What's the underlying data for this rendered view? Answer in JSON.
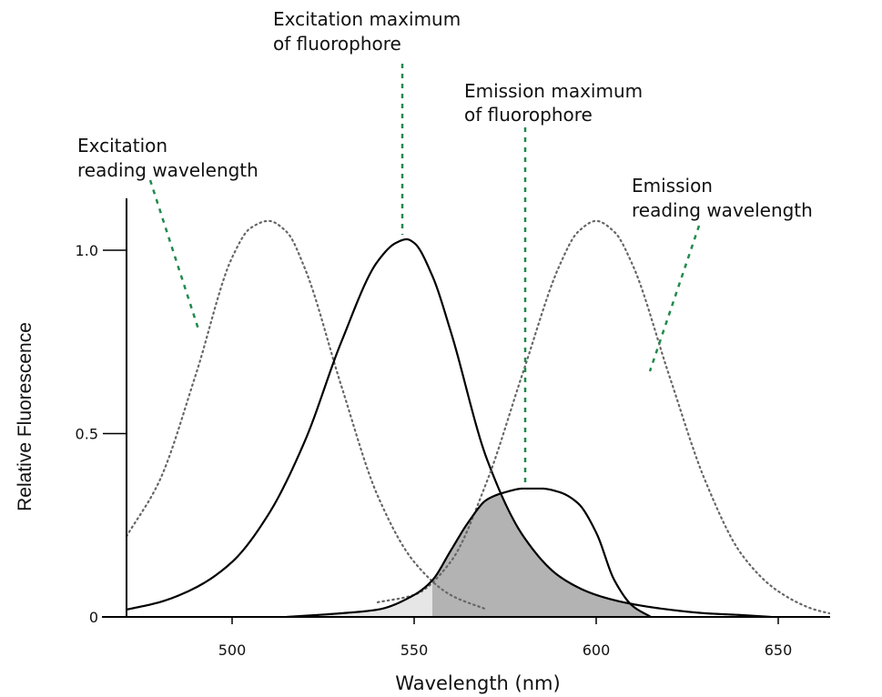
{
  "chart_data": {
    "type": "line",
    "xlabel": "Wavelength (nm)",
    "ylabel": "Relative Fluorescence",
    "xlim": [
      471,
      664
    ],
    "ylim": [
      0,
      1.1
    ],
    "x_ticks": [
      500,
      550,
      600,
      650
    ],
    "x_tick_labels": [
      "500",
      "550",
      "600",
      "650"
    ],
    "y_ticks": [
      0,
      0.5,
      1.0
    ],
    "y_tick_labels": [
      "0",
      "0.5",
      "1.0"
    ],
    "grid": false,
    "legend": "none",
    "series": [
      {
        "style": "dotted",
        "color": "#666666",
        "x": [
          471,
          480,
          490,
          500,
          505,
          510,
          515,
          520,
          530,
          540,
          550,
          560,
          570
        ],
        "y": [
          0.22,
          0.37,
          0.66,
          0.98,
          1.06,
          1.08,
          1.05,
          0.95,
          0.63,
          0.33,
          0.15,
          0.06,
          0.02
        ]
      },
      {
        "style": "solid",
        "color": "#000000",
        "x": [
          471,
          480,
          490,
          500,
          510,
          520,
          530,
          540,
          545,
          548,
          550,
          555,
          560,
          570,
          580,
          590,
          600,
          610,
          620,
          630,
          640,
          648
        ],
        "y": [
          0.02,
          0.04,
          0.08,
          0.15,
          0.28,
          0.48,
          0.75,
          0.97,
          1.02,
          1.03,
          1.02,
          0.93,
          0.78,
          0.43,
          0.22,
          0.11,
          0.06,
          0.035,
          0.02,
          0.01,
          0.005,
          0.0
        ]
      },
      {
        "style": "dotted",
        "color": "#666666",
        "x": [
          540,
          550,
          560,
          570,
          580,
          590,
          595,
          600,
          605,
          610,
          620,
          630,
          640,
          650,
          660,
          664
        ],
        "y": [
          0.04,
          0.06,
          0.15,
          0.37,
          0.67,
          0.96,
          1.05,
          1.08,
          1.05,
          0.96,
          0.66,
          0.37,
          0.17,
          0.07,
          0.02,
          0.01
        ]
      },
      {
        "style": "solid",
        "color": "#000000",
        "x": [
          515,
          530,
          540,
          550,
          555,
          560,
          565,
          570,
          575,
          580,
          585,
          590,
          595,
          600,
          605,
          610,
          615
        ],
        "y": [
          0.0,
          0.01,
          0.02,
          0.06,
          0.1,
          0.18,
          0.26,
          0.32,
          0.34,
          0.35,
          0.35,
          0.34,
          0.31,
          0.23,
          0.1,
          0.03,
          0.0
        ]
      }
    ],
    "annotations": [
      {
        "label_lines": [
          "Excitation maximum",
          "of fluorophore"
        ]
      },
      {
        "label_lines": [
          "Emission maximum",
          "of fluorophore"
        ]
      },
      {
        "label_lines": [
          "Excitation",
          "reading wavelength"
        ]
      },
      {
        "label_lines": [
          "Emission",
          "reading wavelength"
        ]
      }
    ],
    "overlap_fill_colors": [
      "#e6e6e6",
      "#b3b3b3"
    ]
  }
}
